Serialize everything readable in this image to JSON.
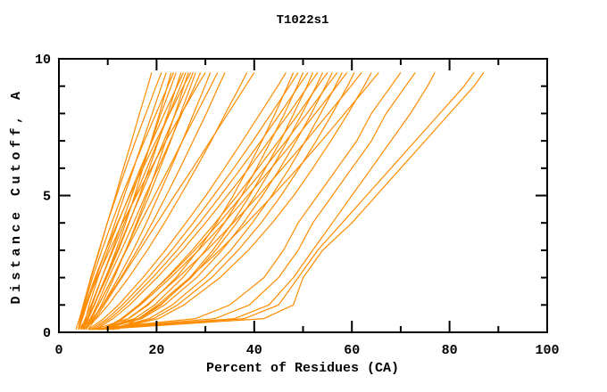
{
  "window": {
    "background": "#ffffff",
    "foreground": "#000000"
  },
  "chart_data": {
    "type": "line",
    "title": "T1022s1",
    "xlabel": "Percent of Residues (CA)",
    "ylabel": "Distance Cutoff, A",
    "xlim": [
      0,
      100
    ],
    "ylim": [
      0,
      10
    ],
    "grid": false,
    "legend": "none",
    "line_color": "#ff8c00",
    "axis_color": "#000000",
    "xticks": {
      "major": [
        0,
        20,
        40,
        60,
        80,
        100
      ],
      "minor": [
        10,
        30,
        50,
        70,
        90
      ]
    },
    "yticks": {
      "major": [
        0,
        5,
        10
      ],
      "minor": [
        1,
        2,
        3,
        4,
        6,
        7,
        8,
        9
      ]
    },
    "cutoffs": [
      0.1,
      0.5,
      1,
      2,
      3,
      4,
      5,
      6,
      7,
      8,
      9,
      9.5
    ],
    "series": [
      [
        3.5,
        4.2,
        5,
        6.6,
        8.3,
        9.9,
        11.6,
        13.2,
        14.9,
        16.5,
        18.2,
        19
      ],
      [
        4,
        4.4,
        5,
        6.5,
        8.2,
        9.9,
        11.8,
        13.7,
        15.7,
        17.8,
        19.9,
        21
      ],
      [
        4,
        4.8,
        5.7,
        7.6,
        9.6,
        11.5,
        13.4,
        15.3,
        17.2,
        19.1,
        21,
        22
      ],
      [
        4.5,
        6,
        7.3,
        9.6,
        11.7,
        13.7,
        15.5,
        17.2,
        18.9,
        20.6,
        22.2,
        23
      ],
      [
        4,
        4.4,
        5.2,
        6.9,
        8.8,
        10.8,
        12.9,
        15.2,
        17.5,
        19.9,
        22.3,
        23.5
      ],
      [
        5,
        5.8,
        6.8,
        8.8,
        10.9,
        12.9,
        14.9,
        16.9,
        19,
        20.9,
        23,
        24
      ],
      [
        4,
        5.7,
        7.2,
        9.8,
        12.2,
        14.4,
        16.5,
        18.5,
        20.4,
        22.3,
        24.1,
        25
      ],
      [
        5,
        5.5,
        6.2,
        8,
        10,
        12.1,
        14.4,
        16.7,
        19.1,
        21.6,
        24.2,
        25.5
      ],
      [
        4.5,
        5.4,
        6.6,
        8.8,
        11.1,
        13.4,
        15.7,
        18,
        20.3,
        22.6,
        24.9,
        26
      ],
      [
        5.5,
        7.2,
        8.7,
        11.3,
        13.7,
        15.9,
        18,
        20,
        21.9,
        23.8,
        25.6,
        26.5
      ],
      [
        4,
        4.5,
        5.4,
        7.4,
        9.6,
        12,
        14.5,
        17.2,
        19.9,
        22.7,
        25.5,
        27
      ],
      [
        5,
        6,
        7.2,
        9.5,
        12,
        14.3,
        16.7,
        19.1,
        21.5,
        23.9,
        26.3,
        27.5
      ],
      [
        4.5,
        6.4,
        8.1,
        11,
        13.7,
        16.1,
        18.5,
        20.7,
        22.9,
        24.9,
        27,
        28
      ],
      [
        5.5,
        6.5,
        7.8,
        10.2,
        12.8,
        15.3,
        17.7,
        20.3,
        22.8,
        25.2,
        27.8,
        29
      ],
      [
        4,
        4.6,
        5.6,
        7.8,
        10.4,
        13,
        15.9,
        18.9,
        21.9,
        25.1,
        28.3,
        30
      ],
      [
        5,
        7.1,
        9,
        12.2,
        15.2,
        17.9,
        20.4,
        22.9,
        25.3,
        27.6,
        29.9,
        31
      ],
      [
        5.5,
        6.7,
        8.1,
        11,
        13.8,
        16.7,
        19.6,
        22.5,
        25.3,
        28.2,
        31.1,
        32.5
      ],
      [
        4.5,
        6.9,
        9,
        12.7,
        16,
        19.1,
        22,
        24.8,
        27.5,
        30.2,
        32.7,
        34
      ],
      [
        5,
        7.7,
        10.1,
        14.3,
        18.1,
        21.6,
        24.9,
        28.1,
        31.2,
        34.1,
        37.1,
        38.5
      ],
      [
        6,
        7.5,
        9.3,
        12.9,
        16.5,
        20.1,
        23.7,
        27.4,
        31,
        34.6,
        38.2,
        40
      ],
      [
        6,
        9.2,
        12.2,
        17.2,
        21.8,
        26,
        30.1,
        33.9,
        37.6,
        41.2,
        44.8,
        46.5
      ],
      [
        7,
        14.3,
        18.3,
        24,
        28.5,
        32.3,
        35.7,
        38.7,
        41.6,
        44.3,
        46.8,
        48
      ],
      [
        6.5,
        9.9,
        13,
        18.3,
        23.1,
        27.5,
        31.7,
        35.8,
        39.7,
        43.5,
        47.2,
        49
      ],
      [
        8,
        15.5,
        19.6,
        25.4,
        30,
        33.9,
        37.4,
        40.5,
        43.4,
        46.2,
        48.8,
        50
      ],
      [
        7,
        10.5,
        13.7,
        19.2,
        24.2,
        28.8,
        33.1,
        37.3,
        41.4,
        45.3,
        49.1,
        51
      ],
      [
        9,
        16.7,
        20.9,
        26.8,
        31.5,
        35.5,
        39.1,
        42.3,
        45.4,
        48.1,
        50.8,
        52
      ],
      [
        7.5,
        11.1,
        14.5,
        20.1,
        25.3,
        30,
        34.5,
        38.9,
        43,
        47.1,
        51,
        53
      ],
      [
        8,
        16.2,
        20.7,
        27.1,
        32.1,
        36.4,
        40.2,
        43.6,
        46.8,
        49.8,
        52.7,
        54
      ],
      [
        9.5,
        13.1,
        16.5,
        22.1,
        27.3,
        32,
        36.5,
        40.8,
        45,
        49.1,
        53,
        55
      ],
      [
        8.5,
        17,
        21.6,
        28.2,
        33.4,
        37.8,
        41.7,
        45.3,
        48.6,
        51.7,
        54.6,
        56
      ],
      [
        9,
        12.8,
        16.3,
        22.3,
        27.8,
        32.8,
        37.5,
        42.1,
        46.5,
        50.8,
        54.9,
        57
      ],
      [
        10,
        18.5,
        23.2,
        29.9,
        35.2,
        39.6,
        43.6,
        47.2,
        50.5,
        53.6,
        56.6,
        58
      ],
      [
        9,
        13,
        16.7,
        22.9,
        28.6,
        33.8,
        38.7,
        43.5,
        48.1,
        52.5,
        56.9,
        59
      ],
      [
        10.5,
        19.4,
        24.3,
        31.3,
        36.7,
        41.4,
        45.5,
        49.2,
        52.7,
        56,
        59.1,
        60.5
      ],
      [
        10,
        14.2,
        18,
        24.4,
        30.3,
        35.7,
        40.9,
        45.8,
        50.6,
        55.2,
        59.8,
        62
      ],
      [
        11,
        20.4,
        25.6,
        33,
        38.8,
        43.7,
        48.1,
        52,
        55.7,
        59.2,
        62.5,
        64
      ],
      [
        12,
        16.3,
        20.2,
        26.8,
        32.9,
        38.5,
        43.8,
        48.9,
        53.8,
        58.5,
        63.2,
        65.5
      ],
      [
        6,
        28,
        35,
        42,
        46,
        49,
        53,
        57,
        61,
        64,
        68,
        70
      ],
      [
        6.5,
        32,
        39,
        45,
        49,
        52,
        56,
        60,
        64,
        67,
        71,
        73
      ],
      [
        7,
        36,
        43,
        48,
        52,
        56,
        60,
        64,
        68,
        72,
        75.5,
        77
      ],
      [
        8,
        38,
        45,
        49,
        53,
        58,
        63,
        68,
        73,
        78,
        83,
        85
      ],
      [
        8,
        42,
        48,
        50,
        54,
        60,
        65,
        70,
        75,
        80,
        85,
        87
      ]
    ]
  }
}
